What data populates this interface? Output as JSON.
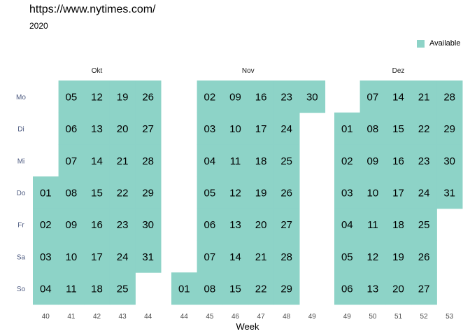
{
  "chart_data": {
    "type": "heatmap",
    "title": "https://www.nytimes.com/",
    "subtitle": "2020",
    "xlabel": "Week",
    "ylabel": "",
    "weekdays": [
      "Mo",
      "Di",
      "Mi",
      "Do",
      "Fr",
      "Sa",
      "So"
    ],
    "legend": {
      "label": "Available",
      "color": "#8dd3c7",
      "placement": "top-right"
    },
    "fill_color": "#8dd3c7",
    "panels": [
      {
        "month": "Okt",
        "weeks": [
          40,
          41,
          42,
          43,
          44
        ],
        "cells": [
          [
            40,
            3,
            "01"
          ],
          [
            40,
            4,
            "02"
          ],
          [
            40,
            5,
            "03"
          ],
          [
            40,
            6,
            "04"
          ],
          [
            41,
            0,
            "05"
          ],
          [
            41,
            1,
            "06"
          ],
          [
            41,
            2,
            "07"
          ],
          [
            41,
            3,
            "08"
          ],
          [
            41,
            4,
            "09"
          ],
          [
            41,
            5,
            "10"
          ],
          [
            41,
            6,
            "11"
          ],
          [
            42,
            0,
            "12"
          ],
          [
            42,
            1,
            "13"
          ],
          [
            42,
            2,
            "14"
          ],
          [
            42,
            3,
            "15"
          ],
          [
            42,
            4,
            "16"
          ],
          [
            42,
            5,
            "17"
          ],
          [
            42,
            6,
            "18"
          ],
          [
            43,
            0,
            "19"
          ],
          [
            43,
            1,
            "20"
          ],
          [
            43,
            2,
            "21"
          ],
          [
            43,
            3,
            "22"
          ],
          [
            43,
            4,
            "23"
          ],
          [
            43,
            5,
            "24"
          ],
          [
            43,
            6,
            "25"
          ],
          [
            44,
            0,
            "26"
          ],
          [
            44,
            1,
            "27"
          ],
          [
            44,
            2,
            "28"
          ],
          [
            44,
            3,
            "29"
          ],
          [
            44,
            4,
            "30"
          ],
          [
            44,
            5,
            "31"
          ]
        ]
      },
      {
        "month": "Nov",
        "weeks": [
          44,
          45,
          46,
          47,
          48,
          49
        ],
        "cells": [
          [
            44,
            6,
            "01"
          ],
          [
            45,
            0,
            "02"
          ],
          [
            45,
            1,
            "03"
          ],
          [
            45,
            2,
            "04"
          ],
          [
            45,
            3,
            "05"
          ],
          [
            45,
            4,
            "06"
          ],
          [
            45,
            5,
            "07"
          ],
          [
            45,
            6,
            "08"
          ],
          [
            46,
            0,
            "09"
          ],
          [
            46,
            1,
            "10"
          ],
          [
            46,
            2,
            "11"
          ],
          [
            46,
            3,
            "12"
          ],
          [
            46,
            4,
            "13"
          ],
          [
            46,
            5,
            "14"
          ],
          [
            46,
            6,
            "15"
          ],
          [
            47,
            0,
            "16"
          ],
          [
            47,
            1,
            "17"
          ],
          [
            47,
            2,
            "18"
          ],
          [
            47,
            3,
            "19"
          ],
          [
            47,
            4,
            "20"
          ],
          [
            47,
            5,
            "21"
          ],
          [
            47,
            6,
            "22"
          ],
          [
            48,
            0,
            "23"
          ],
          [
            48,
            1,
            "24"
          ],
          [
            48,
            2,
            "25"
          ],
          [
            48,
            3,
            "26"
          ],
          [
            48,
            4,
            "27"
          ],
          [
            48,
            5,
            "28"
          ],
          [
            48,
            6,
            "29"
          ],
          [
            49,
            0,
            "30"
          ]
        ]
      },
      {
        "month": "Dez",
        "weeks": [
          49,
          50,
          51,
          52,
          53
        ],
        "cells": [
          [
            49,
            1,
            "01"
          ],
          [
            49,
            2,
            "02"
          ],
          [
            49,
            3,
            "03"
          ],
          [
            49,
            4,
            "04"
          ],
          [
            49,
            5,
            "05"
          ],
          [
            49,
            6,
            "06"
          ],
          [
            50,
            0,
            "07"
          ],
          [
            50,
            1,
            "08"
          ],
          [
            50,
            2,
            "09"
          ],
          [
            50,
            3,
            "10"
          ],
          [
            50,
            4,
            "11"
          ],
          [
            50,
            5,
            "12"
          ],
          [
            50,
            6,
            "13"
          ],
          [
            51,
            0,
            "14"
          ],
          [
            51,
            1,
            "15"
          ],
          [
            51,
            2,
            "16"
          ],
          [
            51,
            3,
            "17"
          ],
          [
            51,
            4,
            "18"
          ],
          [
            51,
            5,
            "19"
          ],
          [
            51,
            6,
            "20"
          ],
          [
            52,
            0,
            "21"
          ],
          [
            52,
            1,
            "22"
          ],
          [
            52,
            2,
            "23"
          ],
          [
            52,
            3,
            "24"
          ],
          [
            52,
            4,
            "25"
          ],
          [
            52,
            5,
            "26"
          ],
          [
            52,
            6,
            "27"
          ],
          [
            53,
            0,
            "28"
          ],
          [
            53,
            1,
            "29"
          ],
          [
            53,
            2,
            "30"
          ],
          [
            53,
            3,
            "31"
          ]
        ]
      }
    ]
  }
}
